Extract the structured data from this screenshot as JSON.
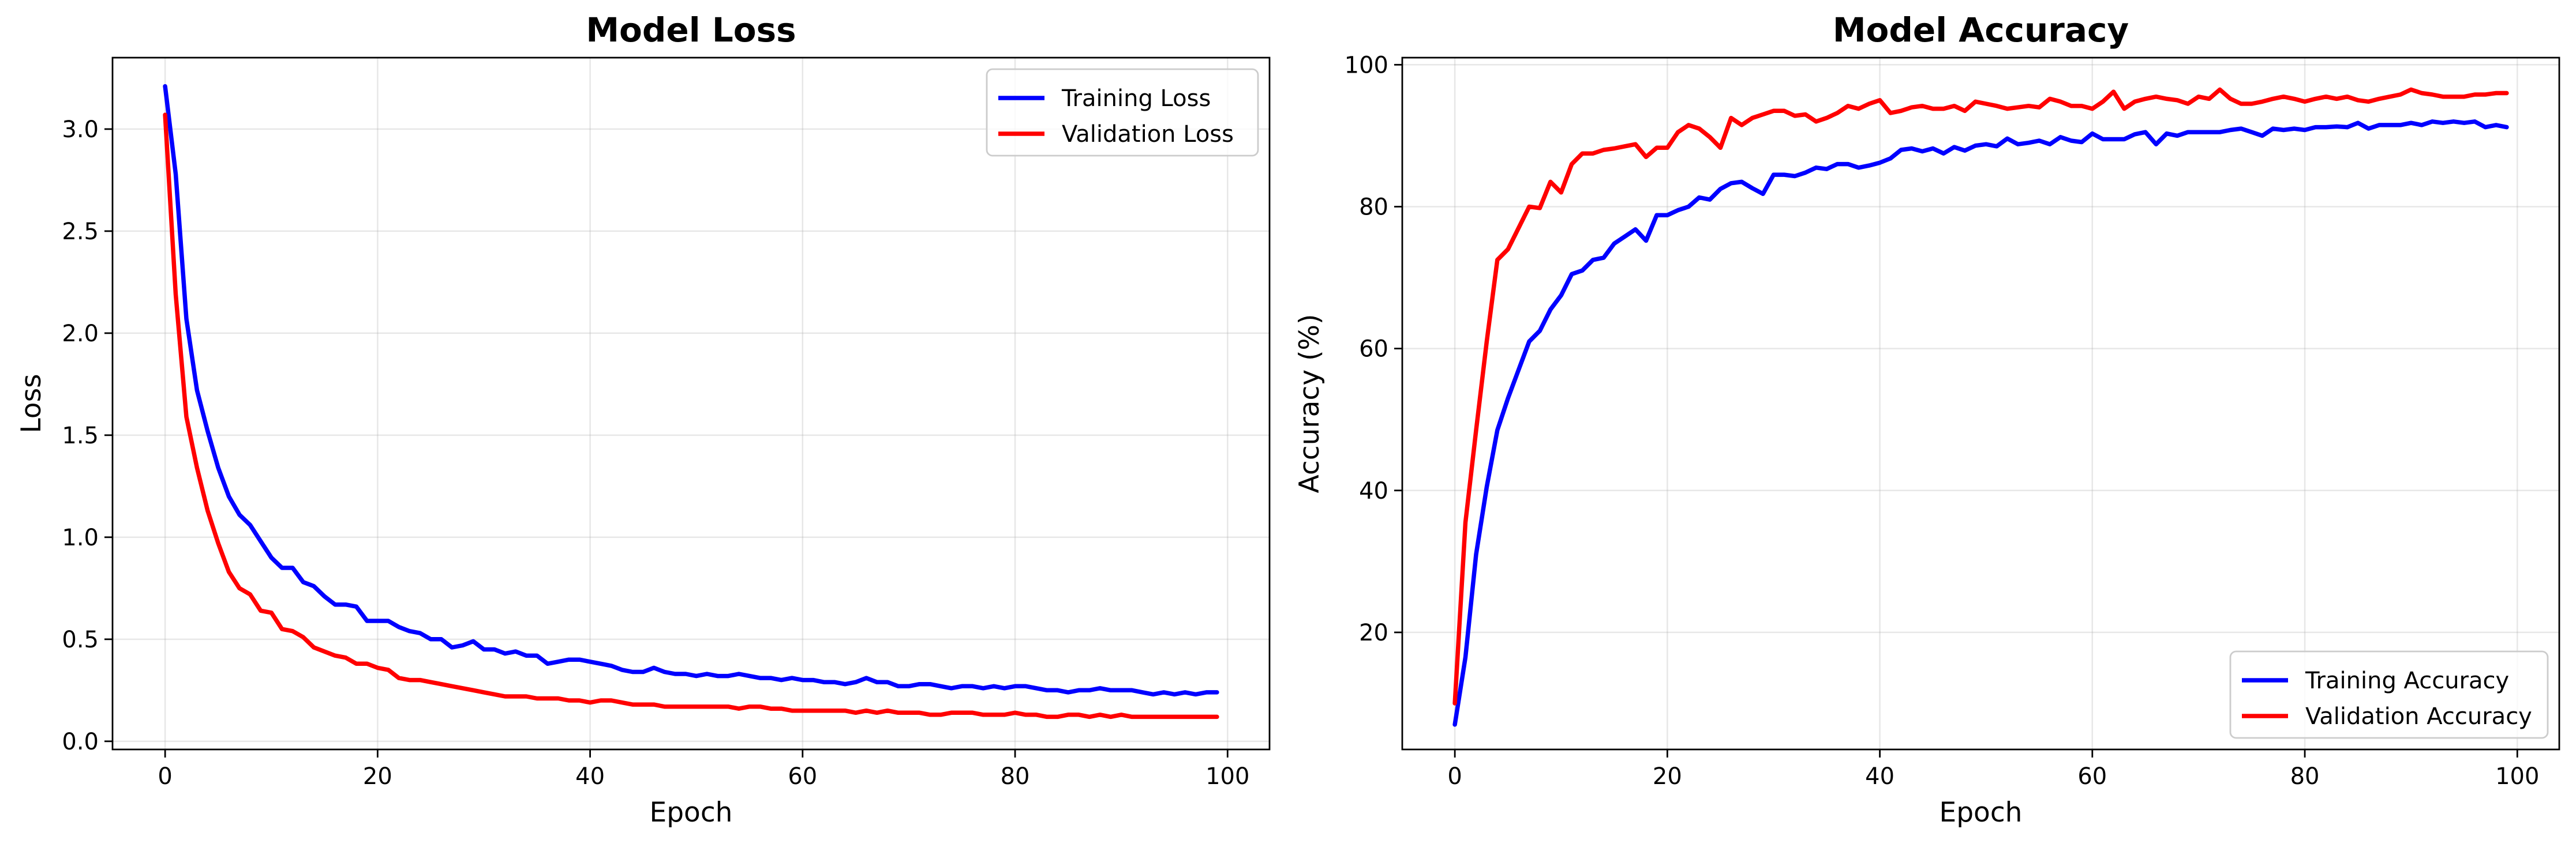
{
  "chart_data": [
    {
      "type": "line",
      "title": "Model Loss",
      "xlabel": "Epoch",
      "ylabel": "Loss",
      "xlim": [
        -4.95,
        103.95
      ],
      "ylim": [
        -0.04,
        3.35
      ],
      "xticks": [
        0,
        20,
        40,
        60,
        80,
        100
      ],
      "yticks": [
        0.0,
        0.5,
        1.0,
        1.5,
        2.0,
        2.5,
        3.0
      ],
      "ytick_format": 1,
      "grid": true,
      "legend_position": "upper right",
      "series": [
        {
          "name": "Training Loss",
          "color": "#0000ff",
          "values": [
            3.21,
            2.78,
            2.07,
            1.72,
            1.52,
            1.34,
            1.2,
            1.11,
            1.06,
            0.98,
            0.9,
            0.85,
            0.85,
            0.78,
            0.76,
            0.71,
            0.67,
            0.67,
            0.66,
            0.59,
            0.59,
            0.59,
            0.56,
            0.54,
            0.53,
            0.5,
            0.5,
            0.46,
            0.47,
            0.49,
            0.45,
            0.45,
            0.43,
            0.44,
            0.42,
            0.42,
            0.38,
            0.39,
            0.4,
            0.4,
            0.39,
            0.38,
            0.37,
            0.35,
            0.34,
            0.34,
            0.36,
            0.34,
            0.33,
            0.33,
            0.32,
            0.33,
            0.32,
            0.32,
            0.33,
            0.32,
            0.31,
            0.31,
            0.3,
            0.31,
            0.3,
            0.3,
            0.29,
            0.29,
            0.28,
            0.29,
            0.31,
            0.29,
            0.29,
            0.27,
            0.27,
            0.28,
            0.28,
            0.27,
            0.26,
            0.27,
            0.27,
            0.26,
            0.27,
            0.26,
            0.27,
            0.27,
            0.26,
            0.25,
            0.25,
            0.24,
            0.25,
            0.25,
            0.26,
            0.25,
            0.25,
            0.25,
            0.24,
            0.23,
            0.24,
            0.23,
            0.24,
            0.23,
            0.24,
            0.24
          ]
        },
        {
          "name": "Validation Loss",
          "color": "#ff0000",
          "values": [
            3.07,
            2.19,
            1.59,
            1.34,
            1.13,
            0.97,
            0.83,
            0.75,
            0.72,
            0.64,
            0.63,
            0.55,
            0.54,
            0.51,
            0.46,
            0.44,
            0.42,
            0.41,
            0.38,
            0.38,
            0.36,
            0.35,
            0.31,
            0.3,
            0.3,
            0.29,
            0.28,
            0.27,
            0.26,
            0.25,
            0.24,
            0.23,
            0.22,
            0.22,
            0.22,
            0.21,
            0.21,
            0.21,
            0.2,
            0.2,
            0.19,
            0.2,
            0.2,
            0.19,
            0.18,
            0.18,
            0.18,
            0.17,
            0.17,
            0.17,
            0.17,
            0.17,
            0.17,
            0.17,
            0.16,
            0.17,
            0.17,
            0.16,
            0.16,
            0.15,
            0.15,
            0.15,
            0.15,
            0.15,
            0.15,
            0.14,
            0.15,
            0.14,
            0.15,
            0.14,
            0.14,
            0.14,
            0.13,
            0.13,
            0.14,
            0.14,
            0.14,
            0.13,
            0.13,
            0.13,
            0.14,
            0.13,
            0.13,
            0.12,
            0.12,
            0.13,
            0.13,
            0.12,
            0.13,
            0.12,
            0.13,
            0.12,
            0.12,
            0.12,
            0.12,
            0.12,
            0.12,
            0.12,
            0.12,
            0.12
          ]
        }
      ]
    },
    {
      "type": "line",
      "title": "Model Accuracy",
      "xlabel": "Epoch",
      "ylabel": "Accuracy (%)",
      "xlim": [
        -4.95,
        103.95
      ],
      "ylim": [
        3.5,
        101.0
      ],
      "xticks": [
        0,
        20,
        40,
        60,
        80,
        100
      ],
      "yticks": [
        20,
        40,
        60,
        80,
        100
      ],
      "ytick_format": 0,
      "grid": true,
      "legend_position": "lower right",
      "series": [
        {
          "name": "Training Accuracy",
          "color": "#0000ff",
          "values": [
            7.0,
            16.5,
            31.0,
            40.5,
            48.5,
            53.0,
            57.0,
            61.0,
            62.5,
            65.5,
            67.5,
            70.5,
            71.0,
            72.5,
            72.8,
            74.8,
            75.8,
            76.8,
            75.2,
            78.8,
            78.8,
            79.5,
            80.0,
            81.3,
            81.0,
            82.5,
            83.3,
            83.5,
            82.6,
            81.8,
            84.5,
            84.5,
            84.3,
            84.8,
            85.5,
            85.3,
            86.0,
            86.0,
            85.5,
            85.8,
            86.2,
            86.8,
            88.0,
            88.2,
            87.8,
            88.2,
            87.5,
            88.4,
            87.9,
            88.6,
            88.8,
            88.5,
            89.6,
            88.8,
            89.0,
            89.3,
            88.8,
            89.8,
            89.3,
            89.1,
            90.3,
            89.5,
            89.5,
            89.5,
            90.2,
            90.5,
            88.8,
            90.3,
            90.0,
            90.5,
            90.5,
            90.5,
            90.5,
            90.8,
            91.0,
            90.5,
            90.0,
            91.0,
            90.8,
            91.0,
            90.8,
            91.2,
            91.2,
            91.3,
            91.2,
            91.8,
            91.0,
            91.5,
            91.5,
            91.5,
            91.8,
            91.5,
            92.0,
            91.8,
            92.0,
            91.8,
            92.0,
            91.2,
            91.5,
            91.2
          ]
        },
        {
          "name": "Validation Accuracy",
          "color": "#ff0000",
          "values": [
            10.0,
            35.5,
            48.5,
            61.0,
            72.5,
            74.0,
            77.0,
            80.0,
            79.8,
            83.5,
            82.0,
            86.0,
            87.5,
            87.5,
            88.0,
            88.2,
            88.5,
            88.8,
            87.0,
            88.3,
            88.3,
            90.5,
            91.5,
            91.0,
            89.8,
            88.3,
            92.5,
            91.5,
            92.5,
            93.0,
            93.5,
            93.5,
            92.8,
            93.0,
            92.0,
            92.5,
            93.2,
            94.2,
            93.8,
            94.5,
            95.0,
            93.2,
            93.5,
            94.0,
            94.2,
            93.8,
            93.8,
            94.2,
            93.5,
            94.8,
            94.5,
            94.2,
            93.8,
            94.0,
            94.2,
            94.0,
            95.2,
            94.8,
            94.2,
            94.2,
            93.8,
            94.8,
            96.2,
            93.8,
            94.8,
            95.2,
            95.5,
            95.2,
            95.0,
            94.5,
            95.5,
            95.2,
            96.5,
            95.2,
            94.5,
            94.5,
            94.8,
            95.2,
            95.5,
            95.2,
            94.8,
            95.2,
            95.5,
            95.2,
            95.5,
            95.0,
            94.8,
            95.2,
            95.5,
            95.8,
            96.5,
            96.0,
            95.8,
            95.5,
            95.5,
            95.5,
            95.8,
            95.8,
            96.0,
            96.0
          ]
        }
      ]
    }
  ]
}
